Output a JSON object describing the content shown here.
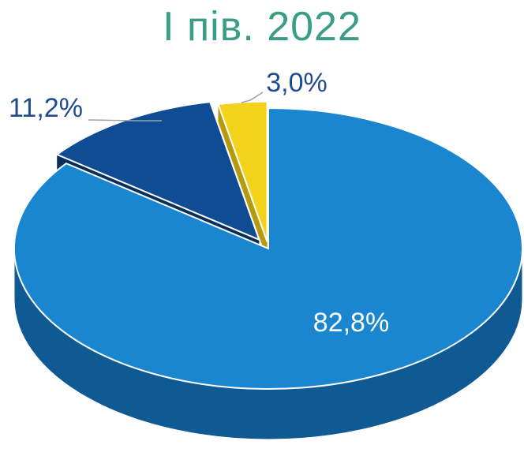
{
  "colors": {
    "title": "#3a9d86",
    "main_top": "#1a86cf",
    "main_side": "#0f5a92",
    "mid_top": "#0f4c93",
    "mid_side": "#082e5c",
    "small_top": "#f2d21b",
    "small_side": "#b69a0d",
    "label_dark": "#1f4b8f",
    "label_light": "#ffffff"
  },
  "chart_data": {
    "type": "pie",
    "title": "І пів. 2022",
    "slices": [
      {
        "value": 82.8,
        "label": "82,8%",
        "color_key": "main"
      },
      {
        "value": 11.2,
        "label": "11,2%",
        "color_key": "mid"
      },
      {
        "value": 3.0,
        "label": "3,0%",
        "color_key": "small"
      }
    ]
  }
}
